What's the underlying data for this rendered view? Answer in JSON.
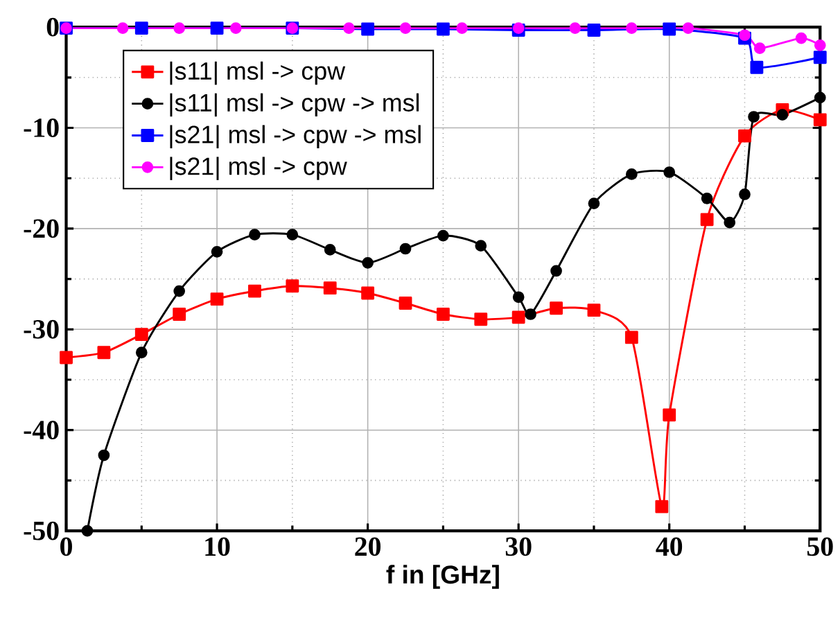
{
  "chart_data": {
    "type": "line",
    "xlabel": "f in [GHz]",
    "xlim": [
      0,
      50
    ],
    "ylim": [
      -50,
      0
    ],
    "xticks": [
      0,
      10,
      20,
      30,
      40,
      50
    ],
    "yticks": [
      -50,
      -40,
      -30,
      -20,
      -10,
      0
    ],
    "grid": true,
    "legend": "top left",
    "series": [
      {
        "name": "|s11| msl -> cpw",
        "color": "#ff0000",
        "marker": "square",
        "x": [
          0,
          2.5,
          5,
          7.5,
          10,
          12.5,
          15,
          17.5,
          20,
          22.5,
          25,
          27.5,
          30,
          32.5,
          35,
          37.5,
          39.5,
          40,
          42.5,
          45,
          47.5,
          50
        ],
        "values": [
          -32.8,
          -32.3,
          -30.5,
          -28.5,
          -27,
          -26.2,
          -25.7,
          -25.9,
          -26.4,
          -27.4,
          -28.5,
          -29,
          -28.8,
          -27.9,
          -28.1,
          -30.8,
          -47.6,
          -38.5,
          -19.1,
          -10.8,
          -8.2,
          -9.2
        ]
      },
      {
        "name": "|s11| msl -> cpw -> msl",
        "color": "#000000",
        "marker": "circle",
        "x": [
          1.4,
          2.5,
          5,
          7.5,
          10,
          12.5,
          15,
          17.5,
          20,
          22.5,
          25,
          27.5,
          30,
          30.8,
          32.5,
          35,
          37.5,
          40,
          42.5,
          44,
          45,
          45.6,
          47.5,
          50
        ],
        "values": [
          -50,
          -42.5,
          -32.3,
          -26.2,
          -22.3,
          -20.6,
          -20.6,
          -22.1,
          -23.4,
          -22,
          -20.7,
          -21.7,
          -26.8,
          -28.5,
          -24.2,
          -17.5,
          -14.6,
          -14.4,
          -17,
          -19.4,
          -16.6,
          -8.9,
          -8.7,
          -7
        ]
      },
      {
        "name": "|s21| msl -> cpw -> msl",
        "color": "#0000ff",
        "marker": "square",
        "x": [
          0,
          5,
          10,
          15,
          20,
          25,
          30,
          35,
          40,
          45,
          45.8,
          50
        ],
        "values": [
          -0.1,
          -0.1,
          -0.1,
          -0.1,
          -0.2,
          -0.2,
          -0.3,
          -0.3,
          -0.2,
          -1.1,
          -4.0,
          -3.0
        ]
      },
      {
        "name": "|s21| msl -> cpw",
        "color": "#ff00ff",
        "marker": "circle",
        "x": [
          0,
          3.75,
          7.5,
          11.25,
          15,
          18.75,
          22.5,
          26.25,
          30,
          33.75,
          37.5,
          41.25,
          45,
          46,
          48.75,
          50
        ],
        "values": [
          -0.1,
          -0.1,
          -0.1,
          -0.1,
          -0.1,
          -0.1,
          -0.1,
          -0.1,
          -0.1,
          -0.1,
          -0.1,
          -0.1,
          -0.8,
          -2.1,
          -1.1,
          -1.8
        ]
      }
    ]
  }
}
